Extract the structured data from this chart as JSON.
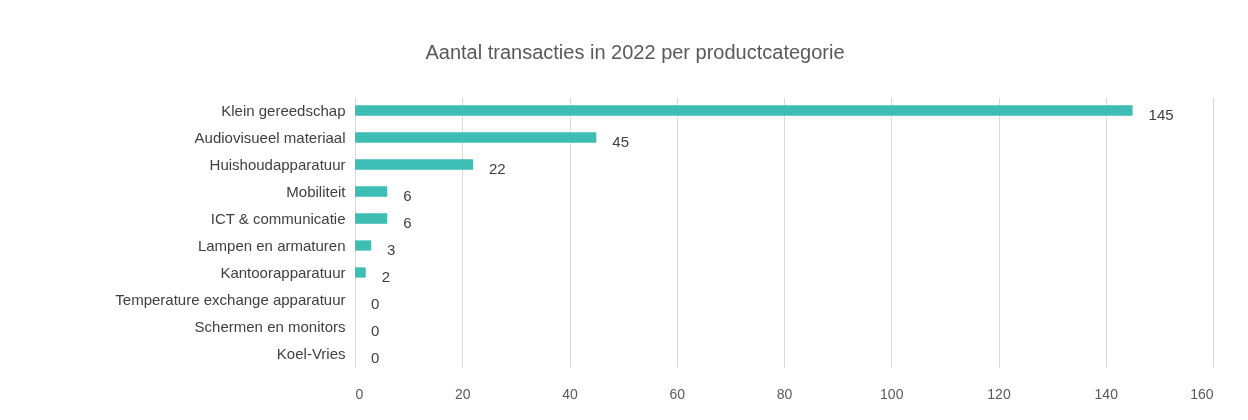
{
  "chart_data": {
    "type": "bar",
    "orientation": "horizontal",
    "title": "Aantal transacties in 2022 per productcategorie",
    "categories": [
      "Klein gereedschap",
      "Audiovisueel materiaal",
      "Huishoudapparatuur",
      "Mobiliteit",
      "ICT & communicatie",
      "Lampen en armaturen",
      "Kantoorapparatuur",
      "Temperature exchange apparatuur",
      "Schermen en monitors",
      "Koel-Vries"
    ],
    "values": [
      145,
      45,
      22,
      6,
      6,
      3,
      2,
      0,
      0,
      0
    ],
    "color": "#3dbdb3",
    "xlim": [
      0,
      160
    ],
    "xticks": [
      0,
      20,
      40,
      60,
      80,
      100,
      120,
      140,
      160
    ],
    "grid": "x",
    "data_labels": true
  }
}
